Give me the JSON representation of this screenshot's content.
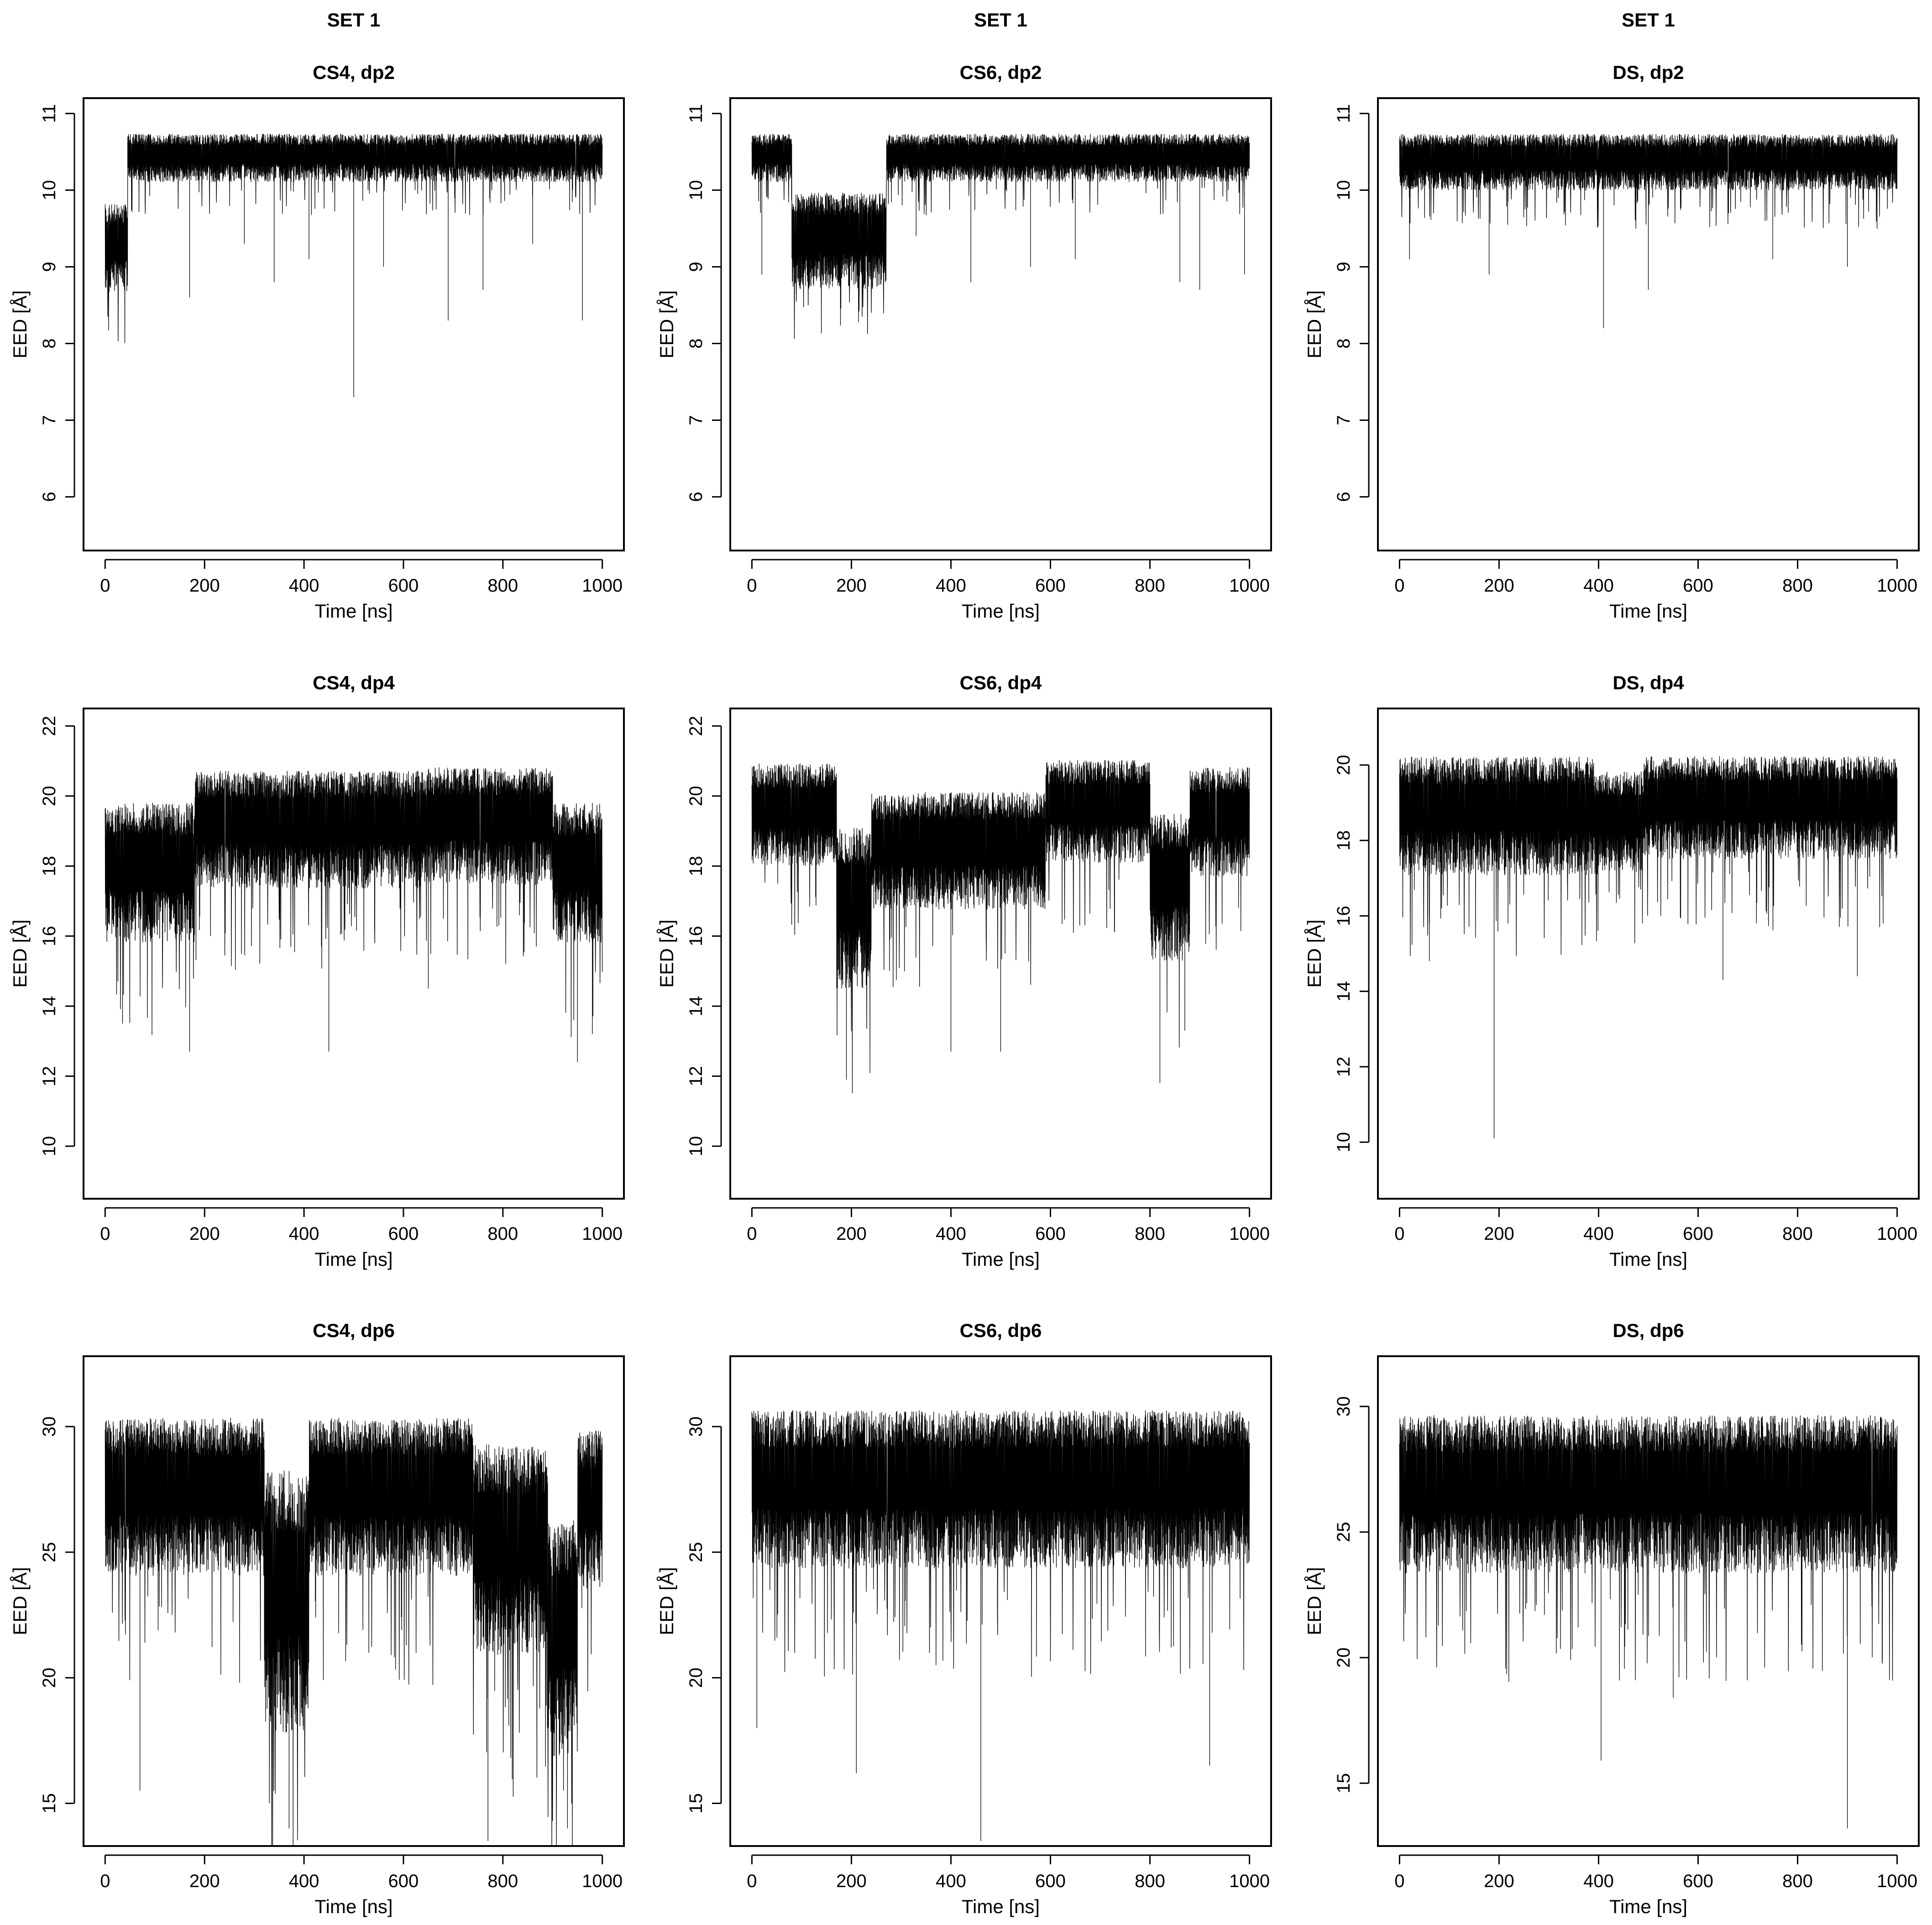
{
  "chart_data": [
    {
      "type": "line",
      "set_label": "SET 1",
      "title": "CS4, dp2",
      "xlabel": "Time [ns]",
      "ylabel": "EED [Å]",
      "xlim": [
        0,
        1000
      ],
      "ylim": [
        5.3,
        11.2
      ],
      "xticks": [
        0,
        200,
        400,
        600,
        800,
        1000
      ],
      "yticks": [
        6,
        7,
        8,
        9,
        10,
        11
      ],
      "segments": [
        {
          "x": [
            0,
            45
          ],
          "center": 9.3,
          "amplitude": 0.55
        },
        {
          "x": [
            45,
            1000
          ],
          "center": 10.45,
          "amplitude": 0.3
        }
      ],
      "spikes": [
        [
          170,
          8.6
        ],
        [
          280,
          9.3
        ],
        [
          340,
          8.8
        ],
        [
          410,
          9.1
        ],
        [
          500,
          7.3
        ],
        [
          560,
          9.0
        ],
        [
          690,
          8.3
        ],
        [
          760,
          8.7
        ],
        [
          860,
          9.3
        ],
        [
          960,
          8.3
        ]
      ]
    },
    {
      "type": "line",
      "set_label": "SET 1",
      "title": "CS6, dp2",
      "xlabel": "Time [ns]",
      "ylabel": "EED [Å]",
      "xlim": [
        0,
        1000
      ],
      "ylim": [
        5.3,
        11.2
      ],
      "xticks": [
        0,
        200,
        400,
        600,
        800,
        1000
      ],
      "yticks": [
        6,
        7,
        8,
        9,
        10,
        11
      ],
      "segments": [
        {
          "x": [
            0,
            80
          ],
          "center": 10.45,
          "amplitude": 0.3
        },
        {
          "x": [
            80,
            270
          ],
          "center": 9.4,
          "amplitude": 0.6
        },
        {
          "x": [
            270,
            1000
          ],
          "center": 10.45,
          "amplitude": 0.3
        }
      ],
      "spikes": [
        [
          20,
          8.9
        ],
        [
          330,
          9.4
        ],
        [
          440,
          8.8
        ],
        [
          560,
          9.0
        ],
        [
          650,
          9.1
        ],
        [
          860,
          8.8
        ],
        [
          900,
          8.7
        ],
        [
          990,
          8.9
        ]
      ]
    },
    {
      "type": "line",
      "set_label": "SET 1",
      "title": "DS, dp2",
      "xlabel": "Time [ns]",
      "ylabel": "EED [Å]",
      "xlim": [
        0,
        1000
      ],
      "ylim": [
        5.3,
        11.2
      ],
      "xticks": [
        0,
        200,
        400,
        600,
        800,
        1000
      ],
      "yticks": [
        6,
        7,
        8,
        9,
        10,
        11
      ],
      "segments": [
        {
          "x": [
            0,
            1000
          ],
          "center": 10.4,
          "amplitude": 0.35
        }
      ],
      "spikes": [
        [
          20,
          9.1
        ],
        [
          180,
          8.9
        ],
        [
          410,
          8.2
        ],
        [
          500,
          8.7
        ],
        [
          750,
          9.1
        ],
        [
          900,
          9.0
        ]
      ]
    },
    {
      "type": "line",
      "title": "CS4, dp4",
      "xlabel": "Time [ns]",
      "ylabel": "EED [Å]",
      "xlim": [
        0,
        1000
      ],
      "ylim": [
        8.5,
        22.5
      ],
      "xticks": [
        0,
        200,
        400,
        600,
        800,
        1000
      ],
      "yticks": [
        10,
        12,
        14,
        16,
        18,
        20,
        22
      ],
      "segments": [
        {
          "x": [
            0,
            180
          ],
          "center": 18.0,
          "amplitude": 1.9
        },
        {
          "x": [
            180,
            640
          ],
          "center": 19.2,
          "amplitude": 1.6
        },
        {
          "x": [
            640,
            900
          ],
          "center": 19.3,
          "amplitude": 1.6
        },
        {
          "x": [
            900,
            1000
          ],
          "center": 18.0,
          "amplitude": 1.9
        }
      ],
      "spikes": [
        [
          35,
          13.5
        ],
        [
          170,
          12.7
        ],
        [
          450,
          12.7
        ],
        [
          650,
          14.5
        ],
        [
          950,
          12.4
        ],
        [
          980,
          13.2
        ]
      ]
    },
    {
      "type": "line",
      "title": "CS6, dp4",
      "xlabel": "Time [ns]",
      "ylabel": "EED [Å]",
      "xlim": [
        0,
        1000
      ],
      "ylim": [
        8.5,
        22.5
      ],
      "xticks": [
        0,
        200,
        400,
        600,
        800,
        1000
      ],
      "yticks": [
        10,
        12,
        14,
        16,
        18,
        20,
        22
      ],
      "segments": [
        {
          "x": [
            0,
            170
          ],
          "center": 19.6,
          "amplitude": 1.4
        },
        {
          "x": [
            170,
            240
          ],
          "center": 17.0,
          "amplitude": 2.2
        },
        {
          "x": [
            240,
            590
          ],
          "center": 18.6,
          "amplitude": 1.6
        },
        {
          "x": [
            590,
            800
          ],
          "center": 19.7,
          "amplitude": 1.4
        },
        {
          "x": [
            800,
            880
          ],
          "center": 17.6,
          "amplitude": 2.0
        },
        {
          "x": [
            880,
            1000
          ],
          "center": 19.4,
          "amplitude": 1.5
        }
      ],
      "spikes": [
        [
          190,
          11.9
        ],
        [
          400,
          12.7
        ],
        [
          500,
          12.7
        ],
        [
          820,
          11.8
        ],
        [
          870,
          13.3
        ]
      ]
    },
    {
      "type": "line",
      "title": "DS, dp4",
      "xlabel": "Time [ns]",
      "ylabel": "EED [Å]",
      "xlim": [
        0,
        1000
      ],
      "ylim": [
        8.5,
        21.5
      ],
      "xticks": [
        0,
        200,
        400,
        600,
        800,
        1000
      ],
      "yticks": [
        10,
        12,
        14,
        16,
        18,
        20
      ],
      "segments": [
        {
          "x": [
            0,
            390
          ],
          "center": 18.8,
          "amplitude": 1.5
        },
        {
          "x": [
            390,
            490
          ],
          "center": 18.6,
          "amplitude": 1.3
        },
        {
          "x": [
            490,
            1000
          ],
          "center": 19.0,
          "amplitude": 1.3
        }
      ],
      "spikes": [
        [
          60,
          14.8
        ],
        [
          190,
          10.1
        ],
        [
          650,
          14.3
        ],
        [
          920,
          14.4
        ]
      ]
    },
    {
      "type": "line",
      "title": "CS4, dp6",
      "xlabel": "Time [ns]",
      "ylabel": "EED [Å]",
      "xlim": [
        0,
        1000
      ],
      "ylim": [
        13.3,
        32.8
      ],
      "xticks": [
        0,
        200,
        400,
        600,
        800,
        1000
      ],
      "yticks": [
        15,
        20,
        25,
        30
      ],
      "segments": [
        {
          "x": [
            0,
            320
          ],
          "center": 27.5,
          "amplitude": 3.0
        },
        {
          "x": [
            320,
            410
          ],
          "center": 23.5,
          "amplitude": 5.0
        },
        {
          "x": [
            410,
            740
          ],
          "center": 27.5,
          "amplitude": 3.0
        },
        {
          "x": [
            740,
            890
          ],
          "center": 25.5,
          "amplitude": 4.0
        },
        {
          "x": [
            890,
            950
          ],
          "center": 22.0,
          "amplitude": 4.5
        },
        {
          "x": [
            950,
            1000
          ],
          "center": 27.0,
          "amplitude": 3.0
        }
      ],
      "spikes": [
        [
          70,
          15.5
        ],
        [
          370,
          14.0
        ],
        [
          770,
          13.5
        ],
        [
          930,
          14.0
        ]
      ]
    },
    {
      "type": "line",
      "title": "CS6, dp6",
      "xlabel": "Time [ns]",
      "ylabel": "EED [Å]",
      "xlim": [
        0,
        1000
      ],
      "ylim": [
        13.3,
        32.8
      ],
      "xticks": [
        0,
        200,
        400,
        600,
        800,
        1000
      ],
      "yticks": [
        15,
        20,
        25,
        30
      ],
      "segments": [
        {
          "x": [
            0,
            1000
          ],
          "center": 27.8,
          "amplitude": 3.0
        }
      ],
      "spikes": [
        [
          10,
          18.0
        ],
        [
          210,
          16.2
        ],
        [
          460,
          13.5
        ],
        [
          920,
          16.5
        ]
      ]
    },
    {
      "type": "line",
      "title": "DS, dp6",
      "xlabel": "Time [ns]",
      "ylabel": "EED [Å]",
      "xlim": [
        0,
        1000
      ],
      "ylim": [
        12.5,
        32.0
      ],
      "xticks": [
        0,
        200,
        400,
        600,
        800,
        1000
      ],
      "yticks": [
        15,
        20,
        25,
        30
      ],
      "segments": [
        {
          "x": [
            0,
            1000
          ],
          "center": 26.8,
          "amplitude": 3.0
        }
      ],
      "spikes": [
        [
          405,
          15.9
        ],
        [
          550,
          18.4
        ],
        [
          900,
          13.2
        ]
      ]
    }
  ]
}
